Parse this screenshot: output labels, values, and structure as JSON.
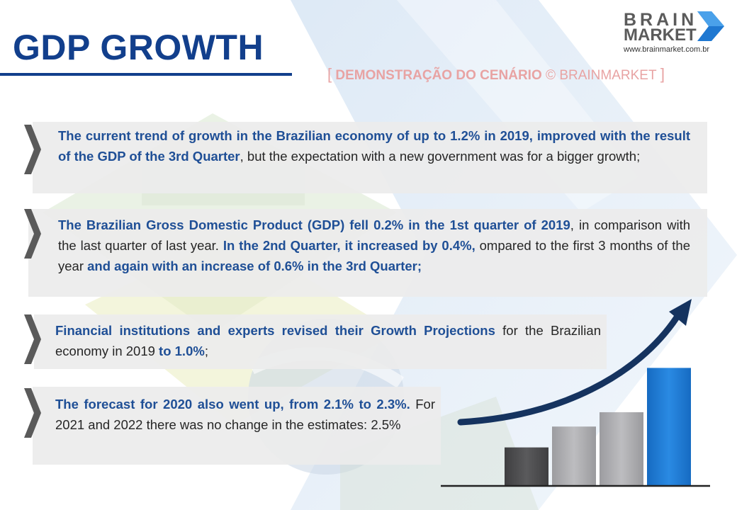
{
  "header": {
    "title": "GDP GROWTH"
  },
  "logo": {
    "brand_line1": "BRAIN",
    "brand_line2": "MARKET",
    "url": "www.brainmarket.com.br",
    "icon": "arrow-chevron-icon"
  },
  "watermark": {
    "open": "[",
    "text": "DEMONSTRAÇÃO DO CENÁRIO",
    "copyright": "©",
    "brand": "BRAINMARKET",
    "close": "]"
  },
  "colors": {
    "accent": "#123f8c",
    "highlight": "#1f4f96",
    "bullet_bg": "#ececec",
    "chevron": "#5a5a5a",
    "bar_dark": "#4d4d4f",
    "bar_grey": "#a6a6a8",
    "bar_blue": "#1f78d1",
    "arrow": "#15335f"
  },
  "bullets": [
    {
      "icon": "chevron-right-icon",
      "segments": [
        {
          "text": "The current trend of growth in the Brazilian economy of up to 1.2% in 2019, improved with the result of the GDP of the 3rd Quarter",
          "hl": true
        },
        {
          "text": ", but the expectation with a new government was for a bigger growth;",
          "hl": false
        }
      ]
    },
    {
      "icon": "chevron-right-icon",
      "segments": [
        {
          "text": "The Brazilian Gross Domestic Product (GDP) fell 0.2% in the 1st quarter of 2019",
          "hl": true
        },
        {
          "text": ", in comparison with the last quarter of last year. ",
          "hl": false
        },
        {
          "text": "In the 2nd Quarter, it increased by 0.4%,",
          "hl": true
        },
        {
          "text": " ompared to the first 3 months of the year ",
          "hl": false
        },
        {
          "text": "and again with an increase of 0.6% in the 3rd Quarter;",
          "hl": true
        }
      ]
    },
    {
      "icon": "chevron-right-icon",
      "segments": [
        {
          "text": "Financial institutions and experts revised their Growth Projections",
          "hl": true
        },
        {
          "text": " for the Brazilian economy in 2019 ",
          "hl": false
        },
        {
          "text": "to 1.0%",
          "hl": true
        },
        {
          "text": ";",
          "hl": false
        }
      ]
    },
    {
      "icon": "chevron-right-icon",
      "segments": [
        {
          "text": "The forecast for 2020 also went up, from 2.1% to 2.3%.",
          "hl": true
        },
        {
          "text": " For 2021 and 2022 there was no change in the estimates: 2.5%",
          "hl": false
        }
      ]
    }
  ],
  "growth_graphic": {
    "icon": "growth-arrow-bars-icon",
    "bar_levels": [
      0.29,
      0.45,
      0.56,
      0.9
    ]
  }
}
